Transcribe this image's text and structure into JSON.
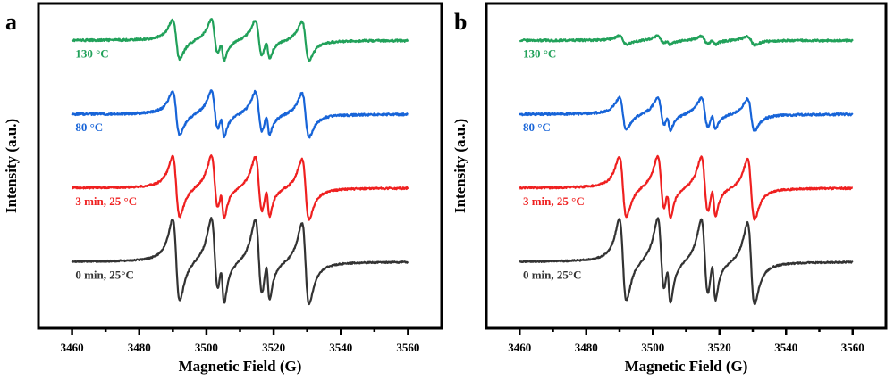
{
  "chart_data": [
    {
      "type": "line",
      "panel_label": "a",
      "xlabel": "Magnetic Field (G)",
      "ylabel": "Intensity (a.u.)",
      "xlim": [
        3450,
        3570
      ],
      "xticks": [
        3460,
        3480,
        3500,
        3520,
        3540,
        3560
      ],
      "x_minor_ticks": [
        3470,
        3490,
        3510,
        3530,
        3550
      ],
      "y_ticks_shown": false,
      "grid": false,
      "line_centers_G": [
        3491.0,
        3502.5,
        3504.8,
        3515.6,
        3518.3,
        3529.5
      ],
      "series": [
        {
          "name": "130 °C",
          "color": "#21a15a",
          "baseline": 3.55,
          "amplitude": 0.55,
          "noise": 0.03
        },
        {
          "name": "80 °C",
          "color": "#1764d8",
          "baseline": 2.55,
          "amplitude": 0.62,
          "noise": 0.03
        },
        {
          "name": "3 min, 25 °C",
          "color": "#ef2020",
          "baseline": 1.55,
          "amplitude": 0.85,
          "noise": 0.025
        },
        {
          "name": "0 min, 25°C",
          "color": "#333333",
          "baseline": 0.55,
          "amplitude": 1.15,
          "noise": 0.02
        }
      ],
      "x_range_of_traces": [
        3460,
        3560
      ]
    },
    {
      "type": "line",
      "panel_label": "b",
      "xlabel": "Magnetic Field (G)",
      "ylabel": "Intensity (a.u.)",
      "xlim": [
        3450,
        3570
      ],
      "xticks": [
        3460,
        3480,
        3500,
        3520,
        3540,
        3560
      ],
      "x_minor_ticks": [
        3470,
        3490,
        3510,
        3530,
        3550
      ],
      "y_ticks_shown": false,
      "grid": false,
      "line_centers_G": [
        3491.0,
        3502.5,
        3504.8,
        3515.6,
        3518.3,
        3529.5
      ],
      "series": [
        {
          "name": "130 °C",
          "color": "#21a15a",
          "baseline": 3.55,
          "amplitude": 0.12,
          "noise": 0.03
        },
        {
          "name": "80 °C",
          "color": "#1764d8",
          "baseline": 2.55,
          "amplitude": 0.45,
          "noise": 0.03
        },
        {
          "name": "3 min, 25 °C",
          "color": "#ef2020",
          "baseline": 1.55,
          "amplitude": 0.85,
          "noise": 0.025
        },
        {
          "name": "0 min, 25°C",
          "color": "#333333",
          "baseline": 0.55,
          "amplitude": 1.15,
          "noise": 0.02
        }
      ],
      "x_range_of_traces": [
        3460,
        3560
      ]
    }
  ]
}
